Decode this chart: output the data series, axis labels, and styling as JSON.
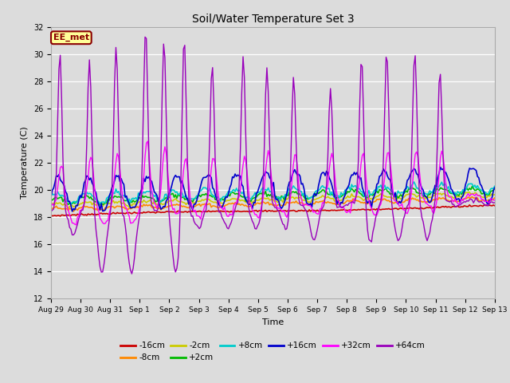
{
  "title": "Soil/Water Temperature Set 3",
  "xlabel": "Time",
  "ylabel": "Temperature (C)",
  "ylim": [
    12,
    32
  ],
  "yticks": [
    12,
    14,
    16,
    18,
    20,
    22,
    24,
    26,
    28,
    30,
    32
  ],
  "bg_color": "#dcdcdc",
  "annotation_text": "EE_met",
  "annotation_bg": "#ffff99",
  "annotation_border": "#8b0000",
  "series_order": [
    "-16cm",
    "-8cm",
    "-2cm",
    "+2cm",
    "+8cm",
    "+16cm",
    "+32cm",
    "+64cm"
  ],
  "series": {
    "-16cm": {
      "color": "#cc0000",
      "lw": 1.2
    },
    "-8cm": {
      "color": "#ff8800",
      "lw": 1.2
    },
    "-2cm": {
      "color": "#cccc00",
      "lw": 1.2
    },
    "+2cm": {
      "color": "#00bb00",
      "lw": 1.2
    },
    "+8cm": {
      "color": "#00cccc",
      "lw": 1.2
    },
    "+16cm": {
      "color": "#0000cc",
      "lw": 1.2
    },
    "+32cm": {
      "color": "#ff00ff",
      "lw": 1.0
    },
    "+64cm": {
      "color": "#9900bb",
      "lw": 1.0
    }
  },
  "x_tick_labels": [
    "Aug 29",
    "Aug 30",
    "Aug 31",
    "Sep 1",
    "Sep 2",
    "Sep 3",
    "Sep 4",
    "Sep 5",
    "Sep 6",
    "Sep 7",
    "Sep 8",
    "Sep 9",
    "Sep 10",
    "Sep 11",
    "Sep 12",
    "Sep 13"
  ],
  "legend_ncol": 6,
  "n_points": 336
}
